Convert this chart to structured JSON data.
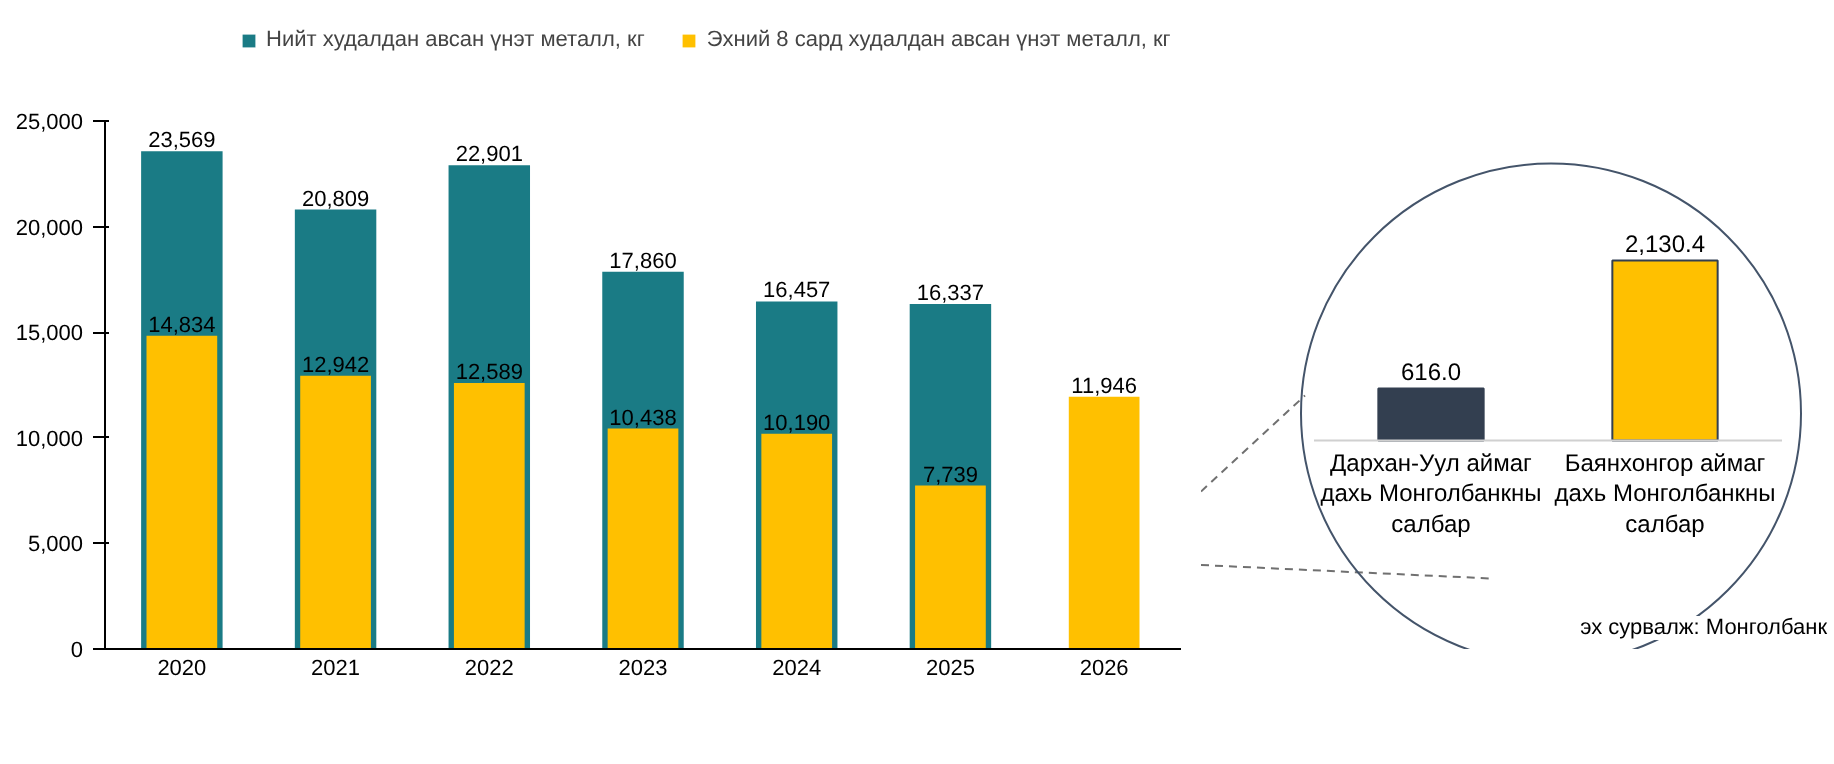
{
  "chart_data": [
    {
      "type": "bar",
      "categories": [
        "2020",
        "2021",
        "2022",
        "2023",
        "2024",
        "2025",
        "2026"
      ],
      "series": [
        {
          "name": "Нийт худалдан авсан үнэт металл, кг",
          "color": "#1a7b85",
          "values": [
            23569,
            20809,
            22901,
            17860,
            16457,
            16337,
            null
          ],
          "value_labels": [
            "23,569",
            "20,809",
            "22,901",
            "17,860",
            "16,457",
            "16,337",
            null
          ]
        },
        {
          "name": "Эхний 8 сард худалдан авсан үнэт металл, кг",
          "color": "#ffc000",
          "values": [
            14834,
            12942,
            12589,
            10438,
            10190,
            7739,
            11946
          ],
          "value_labels": [
            "14,834",
            "12,942",
            "12,589",
            "10,438",
            "10,190",
            "7,739",
            "11,946"
          ]
        }
      ],
      "ylim": [
        0,
        25000
      ],
      "yticks": [
        0,
        {
          "value": 5000,
          "label": "5,000"
        },
        {
          "value": 10000,
          "label": "10,000"
        },
        {
          "value": 15000,
          "label": "15,000"
        },
        {
          "value": 20000,
          "label": "20,000"
        },
        {
          "value": 25000,
          "label": "25,000"
        }
      ],
      "grid": false,
      "legend": "top"
    },
    {
      "type": "bar",
      "categories": [
        "Дархан-Уул аймаг дахь Монголбанкны салбар",
        "Баянхонгор аймаг дахь Монголбанкны салбар"
      ],
      "values": [
        616.0,
        2130.4
      ],
      "colors": [
        "#333f50",
        "#ffc000"
      ],
      "value_labels": [
        "616.0",
        "2,130.4"
      ],
      "annotations": [
        "эх сурвалж: Монголбанк"
      ]
    }
  ]
}
